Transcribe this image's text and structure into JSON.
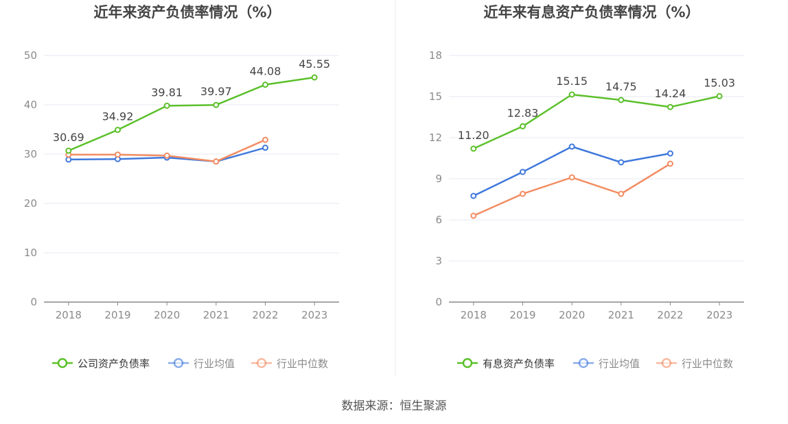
{
  "footer": {
    "source": "数据来源：恒生聚源"
  },
  "chart_data": [
    {
      "type": "line",
      "title": "近年来资产负债率情况（%）",
      "categories": [
        "2018",
        "2019",
        "2020",
        "2021",
        "2022",
        "2023"
      ],
      "ylim": [
        0,
        50
      ],
      "yticks": [
        0,
        10,
        20,
        30,
        40,
        50
      ],
      "grid": true,
      "legend_position": "bottom-center",
      "series": [
        {
          "name": "公司资产负债率",
          "color": "#5bc02a",
          "values": [
            30.69,
            34.92,
            39.81,
            39.97,
            44.08,
            45.55
          ],
          "labels": [
            "30.69",
            "34.92",
            "39.81",
            "39.97",
            "44.08",
            "45.55"
          ]
        },
        {
          "name": "行业均值",
          "color": "#3f78dc",
          "values": [
            28.9,
            29.0,
            29.3,
            28.5,
            31.3,
            null
          ]
        },
        {
          "name": "行业中位数",
          "color": "#f28c62",
          "values": [
            29.9,
            29.9,
            29.7,
            28.5,
            32.9,
            null
          ]
        }
      ]
    },
    {
      "type": "line",
      "title": "近年来有息资产负债率情况（%）",
      "categories": [
        "2018",
        "2019",
        "2020",
        "2021",
        "2022",
        "2023"
      ],
      "ylim": [
        0,
        18
      ],
      "yticks": [
        0,
        3,
        6,
        9,
        12,
        15,
        18
      ],
      "grid": true,
      "legend_position": "bottom-center",
      "series": [
        {
          "name": "有息资产负债率",
          "color": "#5bc02a",
          "values": [
            11.2,
            12.83,
            15.15,
            14.75,
            14.24,
            15.03
          ],
          "labels": [
            "11.20",
            "12.83",
            "15.15",
            "14.75",
            "14.24",
            "15.03"
          ]
        },
        {
          "name": "行业均值",
          "color": "#3f78dc",
          "values": [
            7.75,
            9.5,
            11.35,
            10.2,
            10.85,
            null
          ]
        },
        {
          "name": "行业中位数",
          "color": "#f28c62",
          "values": [
            6.3,
            7.9,
            9.1,
            7.9,
            10.1,
            null
          ]
        }
      ]
    }
  ]
}
